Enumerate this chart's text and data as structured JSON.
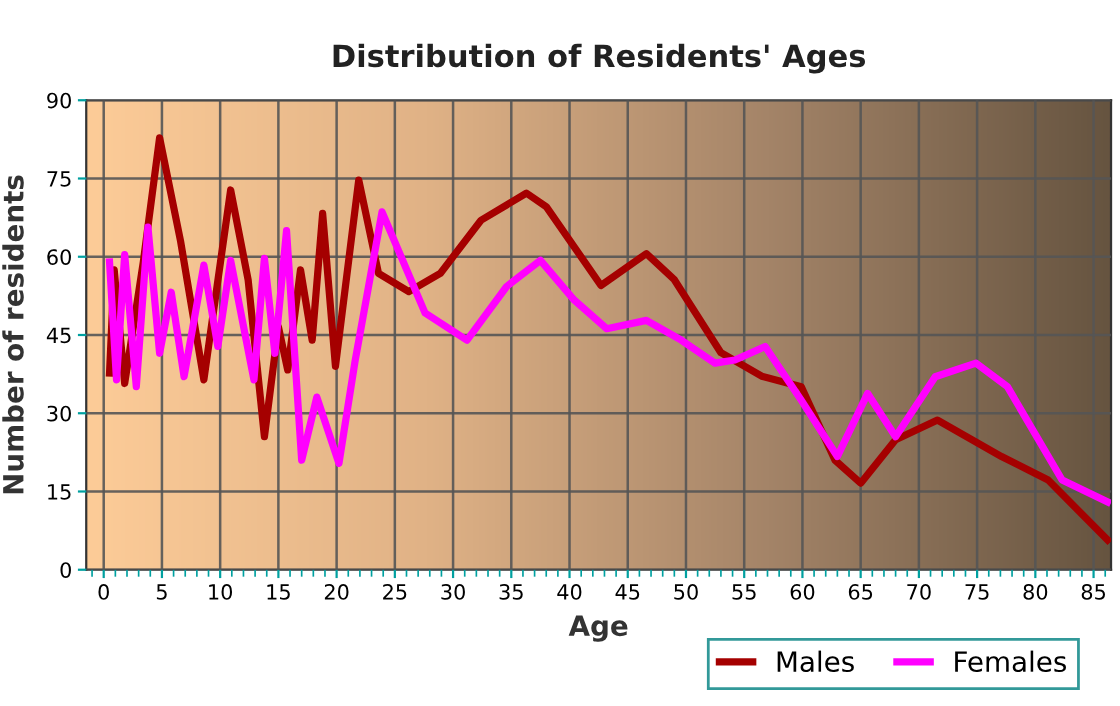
{
  "chart_data": {
    "type": "line",
    "title": "Distribution of Residents' Ages",
    "xlabel": "Age",
    "ylabel": "Number of residents",
    "xlim": [
      -1.5,
      86.5
    ],
    "xticks": [
      0,
      5,
      10,
      15,
      20,
      25,
      30,
      35,
      40,
      45,
      50,
      55,
      60,
      65,
      70,
      75,
      80,
      85
    ],
    "ylim": [
      0,
      90
    ],
    "yticks": [
      0,
      15,
      30,
      45,
      60,
      75,
      90
    ],
    "grid": true,
    "legend": "bottom right",
    "marker": "none",
    "line_style": "solid",
    "series": [
      {
        "name": "Males",
        "color": "#a50000",
        "x": [
          0.5,
          0.9,
          1.8,
          3.4,
          4.8,
          6.6,
          8.6,
          10.9,
          12.4,
          13.8,
          15,
          15.8,
          16.9,
          17.9,
          18.8,
          19.9,
          21.9,
          23.6,
          26.2,
          28.9,
          32.4,
          36.3,
          38,
          42.7,
          46.6,
          49,
          53,
          56.5,
          59.9,
          62.8,
          65,
          68,
          71.6,
          77.1,
          81.1,
          86.2
        ],
        "values": [
          37.7,
          57.5,
          35.7,
          59,
          82.8,
          63,
          36.4,
          72.8,
          55.6,
          25.5,
          46.6,
          38.3,
          57.5,
          44,
          68.3,
          39,
          74.7,
          56.8,
          53.3,
          56.8,
          67,
          72.2,
          69.6,
          54.5,
          60.6,
          55.6,
          41.6,
          37.1,
          35.1,
          21,
          16.6,
          24.9,
          28.7,
          21.7,
          17.2,
          5.7
        ]
      },
      {
        "name": "Females",
        "color": "#ff00ff",
        "x": [
          0.5,
          1.1,
          1.8,
          2.8,
          3.8,
          4.8,
          5.8,
          6.9,
          8.6,
          9.8,
          10.9,
          12.9,
          13.8,
          14.7,
          15.7,
          17,
          18.3,
          20.2,
          21.6,
          23.9,
          27.6,
          31.2,
          34.6,
          37.5,
          40.4,
          43.2,
          46.6,
          49.6,
          52.5,
          54.2,
          56.8,
          59.9,
          63,
          65.6,
          68,
          71.4,
          74.9,
          77.6,
          82.3,
          86.2
        ],
        "values": [
          59,
          36.4,
          60.4,
          35.1,
          65.7,
          41.5,
          53.2,
          37,
          58.4,
          42.8,
          59.3,
          36.4,
          59.7,
          41.5,
          65,
          21,
          33.1,
          20.4,
          40.2,
          68.6,
          49.2,
          44,
          54.3,
          59.3,
          51.7,
          46.2,
          47.8,
          44,
          39.6,
          40.2,
          42.8,
          32.5,
          21.7,
          33.8,
          25.5,
          37,
          39.6,
          35.1,
          17.2,
          13
        ]
      }
    ]
  }
}
